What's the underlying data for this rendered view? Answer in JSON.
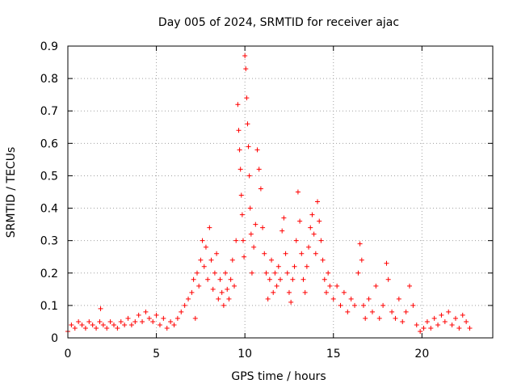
{
  "chart_data": {
    "type": "scatter",
    "title": "Day 005 of 2024, SRMTID for receiver ajac",
    "xlabel": "GPS time / hours",
    "ylabel": "SRMTID / TECUs",
    "xlim": [
      0,
      24
    ],
    "ylim": [
      0,
      0.9
    ],
    "xticks": [
      0,
      5,
      10,
      15,
      20
    ],
    "yticks": [
      0,
      0.1,
      0.2,
      0.3,
      0.4,
      0.5,
      0.6,
      0.7,
      0.8,
      0.9
    ],
    "grid": true,
    "marker": "+",
    "color": "#ff0000",
    "series": [
      {
        "name": "SRMTID",
        "points": [
          [
            0.0,
            0.02
          ],
          [
            0.2,
            0.04
          ],
          [
            0.4,
            0.03
          ],
          [
            0.6,
            0.05
          ],
          [
            0.8,
            0.04
          ],
          [
            1.0,
            0.03
          ],
          [
            1.2,
            0.05
          ],
          [
            1.4,
            0.04
          ],
          [
            1.6,
            0.03
          ],
          [
            1.8,
            0.05
          ],
          [
            1.85,
            0.09
          ],
          [
            2.0,
            0.04
          ],
          [
            2.2,
            0.03
          ],
          [
            2.4,
            0.05
          ],
          [
            2.6,
            0.04
          ],
          [
            2.8,
            0.03
          ],
          [
            3.0,
            0.05
          ],
          [
            3.2,
            0.04
          ],
          [
            3.4,
            0.06
          ],
          [
            3.6,
            0.04
          ],
          [
            3.8,
            0.05
          ],
          [
            4.0,
            0.07
          ],
          [
            4.2,
            0.05
          ],
          [
            4.4,
            0.08
          ],
          [
            4.6,
            0.06
          ],
          [
            4.8,
            0.05
          ],
          [
            5.0,
            0.07
          ],
          [
            5.2,
            0.04
          ],
          [
            5.4,
            0.06
          ],
          [
            5.6,
            0.03
          ],
          [
            5.8,
            0.05
          ],
          [
            6.0,
            0.04
          ],
          [
            6.2,
            0.06
          ],
          [
            6.4,
            0.08
          ],
          [
            6.6,
            0.1
          ],
          [
            6.8,
            0.12
          ],
          [
            7.0,
            0.14
          ],
          [
            7.1,
            0.18
          ],
          [
            7.2,
            0.06
          ],
          [
            7.3,
            0.2
          ],
          [
            7.4,
            0.16
          ],
          [
            7.5,
            0.24
          ],
          [
            7.6,
            0.3
          ],
          [
            7.7,
            0.22
          ],
          [
            7.8,
            0.28
          ],
          [
            7.9,
            0.18
          ],
          [
            8.0,
            0.34
          ],
          [
            8.1,
            0.24
          ],
          [
            8.2,
            0.15
          ],
          [
            8.3,
            0.2
          ],
          [
            8.4,
            0.26
          ],
          [
            8.5,
            0.12
          ],
          [
            8.6,
            0.18
          ],
          [
            8.7,
            0.14
          ],
          [
            8.8,
            0.1
          ],
          [
            8.9,
            0.2
          ],
          [
            9.0,
            0.15
          ],
          [
            9.1,
            0.12
          ],
          [
            9.2,
            0.18
          ],
          [
            9.3,
            0.24
          ],
          [
            9.4,
            0.16
          ],
          [
            9.5,
            0.3
          ],
          [
            9.6,
            0.72
          ],
          [
            9.65,
            0.64
          ],
          [
            9.7,
            0.58
          ],
          [
            9.75,
            0.52
          ],
          [
            9.8,
            0.44
          ],
          [
            9.85,
            0.38
          ],
          [
            9.9,
            0.3
          ],
          [
            9.95,
            0.25
          ],
          [
            10.0,
            0.87
          ],
          [
            10.05,
            0.83
          ],
          [
            10.1,
            0.74
          ],
          [
            10.15,
            0.66
          ],
          [
            10.2,
            0.59
          ],
          [
            10.25,
            0.5
          ],
          [
            10.3,
            0.4
          ],
          [
            10.35,
            0.32
          ],
          [
            10.4,
            0.2
          ],
          [
            10.5,
            0.28
          ],
          [
            10.6,
            0.35
          ],
          [
            10.7,
            0.58
          ],
          [
            10.8,
            0.52
          ],
          [
            10.9,
            0.46
          ],
          [
            11.0,
            0.34
          ],
          [
            11.1,
            0.26
          ],
          [
            11.2,
            0.2
          ],
          [
            11.3,
            0.12
          ],
          [
            11.4,
            0.18
          ],
          [
            11.5,
            0.24
          ],
          [
            11.6,
            0.14
          ],
          [
            11.7,
            0.2
          ],
          [
            11.8,
            0.16
          ],
          [
            11.9,
            0.22
          ],
          [
            12.0,
            0.18
          ],
          [
            12.1,
            0.33
          ],
          [
            12.2,
            0.37
          ],
          [
            12.3,
            0.26
          ],
          [
            12.4,
            0.2
          ],
          [
            12.5,
            0.14
          ],
          [
            12.6,
            0.11
          ],
          [
            12.7,
            0.18
          ],
          [
            12.8,
            0.22
          ],
          [
            12.9,
            0.3
          ],
          [
            13.0,
            0.45
          ],
          [
            13.1,
            0.36
          ],
          [
            13.2,
            0.26
          ],
          [
            13.3,
            0.18
          ],
          [
            13.4,
            0.14
          ],
          [
            13.5,
            0.22
          ],
          [
            13.6,
            0.28
          ],
          [
            13.7,
            0.34
          ],
          [
            13.8,
            0.38
          ],
          [
            13.9,
            0.32
          ],
          [
            14.0,
            0.26
          ],
          [
            14.1,
            0.42
          ],
          [
            14.2,
            0.36
          ],
          [
            14.3,
            0.3
          ],
          [
            14.4,
            0.24
          ],
          [
            14.5,
            0.18
          ],
          [
            14.6,
            0.14
          ],
          [
            14.7,
            0.2
          ],
          [
            14.8,
            0.16
          ],
          [
            15.0,
            0.12
          ],
          [
            15.2,
            0.16
          ],
          [
            15.4,
            0.1
          ],
          [
            15.6,
            0.14
          ],
          [
            15.8,
            0.08
          ],
          [
            16.0,
            0.12
          ],
          [
            16.2,
            0.1
          ],
          [
            16.4,
            0.2
          ],
          [
            16.5,
            0.29
          ],
          [
            16.6,
            0.24
          ],
          [
            16.7,
            0.1
          ],
          [
            16.8,
            0.06
          ],
          [
            17.0,
            0.12
          ],
          [
            17.2,
            0.08
          ],
          [
            17.4,
            0.16
          ],
          [
            17.6,
            0.06
          ],
          [
            17.8,
            0.1
          ],
          [
            18.0,
            0.23
          ],
          [
            18.1,
            0.18
          ],
          [
            18.3,
            0.08
          ],
          [
            18.5,
            0.06
          ],
          [
            18.7,
            0.12
          ],
          [
            18.9,
            0.05
          ],
          [
            19.1,
            0.08
          ],
          [
            19.3,
            0.16
          ],
          [
            19.5,
            0.1
          ],
          [
            19.7,
            0.04
          ],
          [
            19.9,
            0.02
          ],
          [
            20.1,
            0.03
          ],
          [
            20.3,
            0.05
          ],
          [
            20.5,
            0.03
          ],
          [
            20.7,
            0.06
          ],
          [
            20.9,
            0.04
          ],
          [
            21.1,
            0.07
          ],
          [
            21.3,
            0.05
          ],
          [
            21.5,
            0.08
          ],
          [
            21.7,
            0.04
          ],
          [
            21.9,
            0.06
          ],
          [
            22.1,
            0.03
          ],
          [
            22.3,
            0.07
          ],
          [
            22.5,
            0.05
          ],
          [
            22.7,
            0.03
          ]
        ]
      }
    ]
  }
}
